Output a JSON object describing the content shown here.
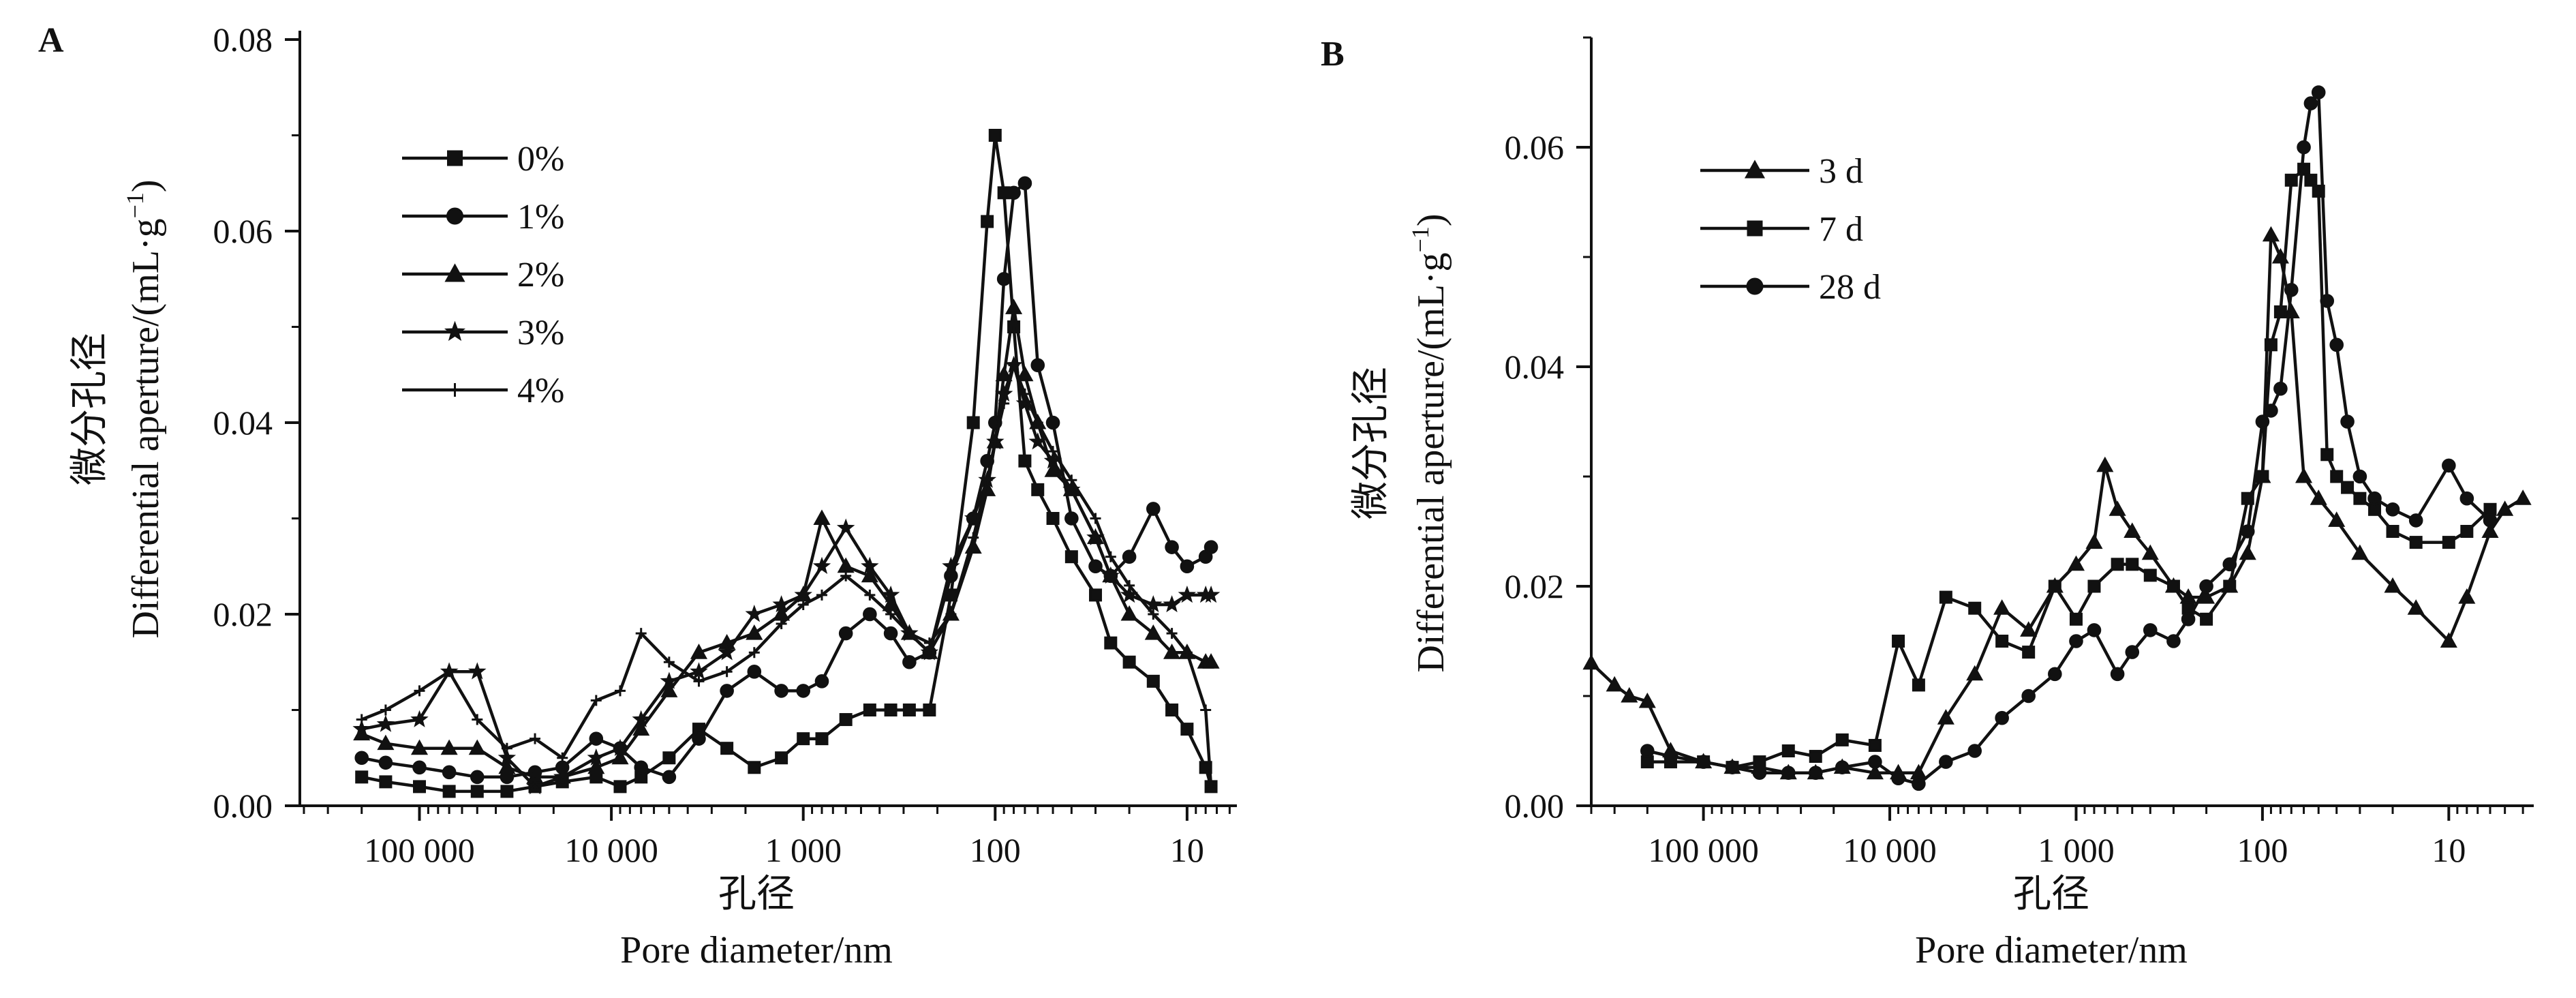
{
  "chart_data": [
    {
      "panel_label": "A",
      "type": "line",
      "ylabel_cn": "微分孔径",
      "ylabel_en": "Differential aperture/(mL·g",
      "ylabel_sup": "−1",
      "ylabel_tail": ")",
      "xlabel_cn": "孔径",
      "xlabel_en": "Pore diameter/nm",
      "x_scale": "log",
      "x_reversed": true,
      "xlim": [
        420000,
        5.5
      ],
      "ylim": [
        0,
        0.08
      ],
      "x_ticks": [
        {
          "value": 100000,
          "label": "100 000"
        },
        {
          "value": 10000,
          "label": "10 000"
        },
        {
          "value": 1000,
          "label": "1 000"
        },
        {
          "value": 100,
          "label": "100"
        },
        {
          "value": 10,
          "label": "10"
        }
      ],
      "y_ticks": [
        {
          "value": 0.0,
          "label": "0.00"
        },
        {
          "value": 0.02,
          "label": "0.02"
        },
        {
          "value": 0.04,
          "label": "0.04"
        },
        {
          "value": 0.06,
          "label": "0.06"
        },
        {
          "value": 0.08,
          "label": "0.08"
        }
      ],
      "legend_position": "top-left",
      "series": [
        {
          "name": "0%",
          "marker": "square",
          "x": [
            200000,
            150000,
            100000,
            70000,
            50000,
            35000,
            25000,
            18000,
            12000,
            9000,
            7000,
            5000,
            3500,
            2500,
            1800,
            1300,
            1000,
            800,
            600,
            450,
            350,
            280,
            220,
            170,
            130,
            110,
            100,
            90,
            80,
            70,
            60,
            50,
            40,
            30,
            25,
            20,
            15,
            12,
            10,
            8,
            7.5
          ],
          "y": [
            0.003,
            0.0025,
            0.002,
            0.0015,
            0.0015,
            0.0015,
            0.002,
            0.0025,
            0.003,
            0.002,
            0.003,
            0.005,
            0.008,
            0.006,
            0.004,
            0.005,
            0.007,
            0.007,
            0.009,
            0.01,
            0.01,
            0.01,
            0.01,
            0.022,
            0.04,
            0.061,
            0.07,
            0.064,
            0.05,
            0.036,
            0.033,
            0.03,
            0.026,
            0.022,
            0.017,
            0.015,
            0.013,
            0.01,
            0.008,
            0.004,
            0.002
          ]
        },
        {
          "name": "1%",
          "marker": "circle",
          "x": [
            200000,
            150000,
            100000,
            70000,
            50000,
            35000,
            25000,
            18000,
            12000,
            9000,
            7000,
            5000,
            3500,
            2500,
            1800,
            1300,
            1000,
            800,
            600,
            450,
            350,
            280,
            220,
            170,
            130,
            110,
            100,
            90,
            80,
            70,
            60,
            50,
            40,
            30,
            25,
            20,
            15,
            12,
            10,
            8,
            7.5
          ],
          "y": [
            0.005,
            0.0045,
            0.004,
            0.0035,
            0.003,
            0.003,
            0.0035,
            0.004,
            0.007,
            0.006,
            0.004,
            0.003,
            0.007,
            0.012,
            0.014,
            0.012,
            0.012,
            0.013,
            0.018,
            0.02,
            0.018,
            0.015,
            0.016,
            0.024,
            0.03,
            0.036,
            0.04,
            0.055,
            0.064,
            0.065,
            0.046,
            0.04,
            0.03,
            0.025,
            0.024,
            0.026,
            0.031,
            0.027,
            0.025,
            0.026,
            0.027
          ]
        },
        {
          "name": "2%",
          "marker": "triangle",
          "x": [
            200000,
            150000,
            100000,
            70000,
            50000,
            35000,
            25000,
            18000,
            12000,
            9000,
            7000,
            5000,
            3500,
            2500,
            1800,
            1300,
            1000,
            800,
            600,
            450,
            350,
            280,
            220,
            170,
            130,
            110,
            100,
            90,
            80,
            70,
            60,
            50,
            40,
            30,
            25,
            20,
            15,
            12,
            10,
            8,
            7.5
          ],
          "y": [
            0.0075,
            0.0065,
            0.006,
            0.006,
            0.006,
            0.004,
            0.003,
            0.003,
            0.004,
            0.005,
            0.008,
            0.012,
            0.016,
            0.017,
            0.018,
            0.02,
            0.022,
            0.03,
            0.025,
            0.024,
            0.021,
            0.018,
            0.016,
            0.02,
            0.027,
            0.033,
            0.038,
            0.045,
            0.052,
            0.045,
            0.04,
            0.035,
            0.033,
            0.028,
            0.024,
            0.02,
            0.018,
            0.016,
            0.016,
            0.015,
            0.015
          ]
        },
        {
          "name": "3%",
          "marker": "star",
          "x": [
            200000,
            150000,
            100000,
            70000,
            50000,
            35000,
            25000,
            18000,
            12000,
            9000,
            7000,
            5000,
            3500,
            2500,
            1800,
            1300,
            1000,
            800,
            600,
            450,
            350,
            280,
            220,
            170,
            130,
            110,
            100,
            90,
            80,
            70,
            60,
            50,
            40,
            30,
            25,
            20,
            15,
            12,
            10,
            8,
            7.5
          ],
          "y": [
            0.008,
            0.0085,
            0.009,
            0.014,
            0.014,
            0.005,
            0.002,
            0.003,
            0.005,
            0.006,
            0.009,
            0.013,
            0.014,
            0.016,
            0.02,
            0.021,
            0.022,
            0.025,
            0.029,
            0.025,
            0.022,
            0.018,
            0.016,
            0.025,
            0.03,
            0.034,
            0.038,
            0.043,
            0.046,
            0.042,
            0.038,
            0.036,
            0.033,
            0.028,
            0.024,
            0.022,
            0.021,
            0.021,
            0.022,
            0.022,
            0.022
          ]
        },
        {
          "name": "4%",
          "marker": "plus",
          "x": [
            200000,
            150000,
            100000,
            70000,
            50000,
            35000,
            25000,
            18000,
            12000,
            9000,
            7000,
            5000,
            3500,
            2500,
            1800,
            1300,
            1000,
            800,
            600,
            450,
            350,
            280,
            220,
            170,
            130,
            110,
            100,
            90,
            80,
            70,
            60,
            50,
            40,
            30,
            25,
            20,
            15,
            12,
            10,
            8,
            7.5
          ],
          "y": [
            0.009,
            0.01,
            0.012,
            0.014,
            0.009,
            0.006,
            0.007,
            0.005,
            0.011,
            0.012,
            0.018,
            0.015,
            0.013,
            0.014,
            0.016,
            0.019,
            0.021,
            0.022,
            0.024,
            0.022,
            0.02,
            0.018,
            0.017,
            0.02,
            0.028,
            0.034,
            0.038,
            0.042,
            0.046,
            0.043,
            0.04,
            0.037,
            0.034,
            0.03,
            0.026,
            0.023,
            0.02,
            0.018,
            0.016,
            0.01,
            0.002
          ]
        }
      ]
    },
    {
      "panel_label": "B",
      "type": "line",
      "ylabel_cn": "微分孔径",
      "ylabel_en": "Differential aperture/(mL·g",
      "ylabel_sup": "−1",
      "ylabel_tail": ")",
      "xlabel_cn": "孔径",
      "xlabel_en": "Pore diameter/nm",
      "x_scale": "log",
      "x_reversed": true,
      "xlim": [
        400000,
        3.5
      ],
      "ylim": [
        0,
        0.07
      ],
      "x_ticks": [
        {
          "value": 100000,
          "label": "100 000"
        },
        {
          "value": 10000,
          "label": "10 000"
        },
        {
          "value": 1000,
          "label": "1 000"
        },
        {
          "value": 100,
          "label": "100"
        },
        {
          "value": 10,
          "label": "10"
        }
      ],
      "y_ticks": [
        {
          "value": 0.0,
          "label": "0.00"
        },
        {
          "value": 0.02,
          "label": "0.02"
        },
        {
          "value": 0.04,
          "label": "0.04"
        },
        {
          "value": 0.06,
          "label": "0.06"
        }
      ],
      "legend_position": "top-left",
      "series": [
        {
          "name": "3 d",
          "marker": "triangle",
          "x": [
            400000,
            300000,
            250000,
            200000,
            150000,
            100000,
            70000,
            50000,
            35000,
            25000,
            18000,
            12000,
            9000,
            7000,
            5000,
            3500,
            2500,
            1800,
            1300,
            1000,
            800,
            700,
            600,
            500,
            400,
            300,
            250,
            200,
            150,
            120,
            100,
            90,
            80,
            70,
            60,
            50,
            40,
            30,
            20,
            15,
            10,
            8,
            6,
            5,
            4
          ],
          "y": [
            0.013,
            0.011,
            0.01,
            0.0095,
            0.005,
            0.004,
            0.0035,
            0.0035,
            0.003,
            0.003,
            0.0035,
            0.003,
            0.003,
            0.003,
            0.008,
            0.012,
            0.018,
            0.016,
            0.02,
            0.022,
            0.024,
            0.031,
            0.027,
            0.025,
            0.023,
            0.02,
            0.019,
            0.019,
            0.02,
            0.023,
            0.03,
            0.052,
            0.05,
            0.045,
            0.03,
            0.028,
            0.026,
            0.023,
            0.02,
            0.018,
            0.015,
            0.019,
            0.025,
            0.027,
            0.028
          ]
        },
        {
          "name": "7 d",
          "marker": "square",
          "x": [
            200000,
            150000,
            100000,
            70000,
            50000,
            35000,
            25000,
            18000,
            12000,
            9000,
            7000,
            5000,
            3500,
            2500,
            1800,
            1300,
            1000,
            800,
            600,
            500,
            400,
            300,
            250,
            200,
            150,
            120,
            100,
            90,
            80,
            70,
            60,
            55,
            50,
            45,
            40,
            35,
            30,
            25,
            20,
            15,
            10,
            8,
            6
          ],
          "y": [
            0.004,
            0.004,
            0.004,
            0.0035,
            0.004,
            0.005,
            0.0045,
            0.006,
            0.0055,
            0.015,
            0.011,
            0.019,
            0.018,
            0.015,
            0.014,
            0.02,
            0.017,
            0.02,
            0.022,
            0.022,
            0.021,
            0.02,
            0.018,
            0.017,
            0.02,
            0.028,
            0.03,
            0.042,
            0.045,
            0.057,
            0.058,
            0.057,
            0.056,
            0.032,
            0.03,
            0.029,
            0.028,
            0.027,
            0.025,
            0.024,
            0.024,
            0.025,
            0.027
          ]
        },
        {
          "name": "28 d",
          "marker": "circle",
          "x": [
            200000,
            150000,
            100000,
            70000,
            50000,
            35000,
            25000,
            18000,
            12000,
            9000,
            7000,
            5000,
            3500,
            2500,
            1800,
            1300,
            1000,
            800,
            600,
            500,
            400,
            300,
            250,
            200,
            150,
            120,
            100,
            90,
            80,
            70,
            60,
            55,
            50,
            45,
            40,
            35,
            30,
            25,
            20,
            15,
            10,
            8,
            6
          ],
          "y": [
            0.005,
            0.0045,
            0.004,
            0.0035,
            0.003,
            0.003,
            0.003,
            0.0035,
            0.004,
            0.0025,
            0.002,
            0.004,
            0.005,
            0.008,
            0.01,
            0.012,
            0.015,
            0.016,
            0.012,
            0.014,
            0.016,
            0.015,
            0.017,
            0.02,
            0.022,
            0.025,
            0.035,
            0.036,
            0.038,
            0.047,
            0.06,
            0.064,
            0.065,
            0.046,
            0.042,
            0.035,
            0.03,
            0.028,
            0.027,
            0.026,
            0.031,
            0.028,
            0.026
          ]
        }
      ]
    }
  ]
}
